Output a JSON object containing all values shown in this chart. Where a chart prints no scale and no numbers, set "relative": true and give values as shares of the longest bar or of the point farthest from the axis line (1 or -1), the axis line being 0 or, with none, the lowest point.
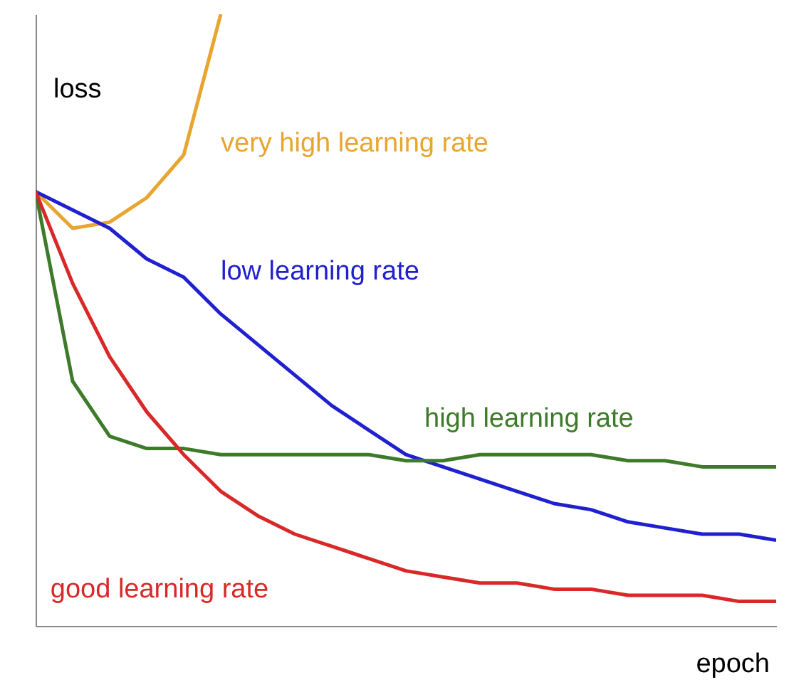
{
  "chart_data": {
    "type": "line",
    "relative": true,
    "xlabel": "epoch",
    "ylabel": "loss",
    "tick_labels": false,
    "grid": false,
    "categories": [
      null,
      null,
      null,
      null,
      null,
      null,
      null,
      null,
      null,
      null,
      null,
      null,
      null,
      null,
      null,
      null,
      null,
      null,
      null,
      null,
      null
    ],
    "series": [
      {
        "name": "very high learning rate",
        "color": "#e8a530",
        "values": [
          0.71,
          0.65,
          0.66,
          0.7,
          0.77,
          1.0,
          null,
          null,
          null,
          null,
          null,
          null,
          null,
          null,
          null,
          null,
          null,
          null,
          null,
          null,
          null
        ]
      },
      {
        "name": "low learning rate",
        "color": "#2020d0",
        "values": [
          0.71,
          0.68,
          0.65,
          0.6,
          0.57,
          0.51,
          0.46,
          0.41,
          0.36,
          0.32,
          0.28,
          0.26,
          0.24,
          0.22,
          0.2,
          0.19,
          0.17,
          0.16,
          0.15,
          0.15,
          0.14
        ]
      },
      {
        "name": "high learning rate",
        "color": "#3d7a2a",
        "values": [
          0.71,
          0.4,
          0.31,
          0.29,
          0.29,
          0.28,
          0.28,
          0.28,
          0.28,
          0.28,
          0.27,
          0.27,
          0.28,
          0.28,
          0.28,
          0.28,
          0.27,
          0.27,
          0.26,
          0.26,
          0.26
        ]
      },
      {
        "name": "good learning rate",
        "color": "#d82828",
        "values": [
          0.71,
          0.56,
          0.44,
          0.35,
          0.28,
          0.22,
          0.18,
          0.15,
          0.13,
          0.11,
          0.09,
          0.08,
          0.07,
          0.07,
          0.06,
          0.06,
          0.05,
          0.05,
          0.05,
          0.04,
          0.04
        ]
      }
    ]
  }
}
